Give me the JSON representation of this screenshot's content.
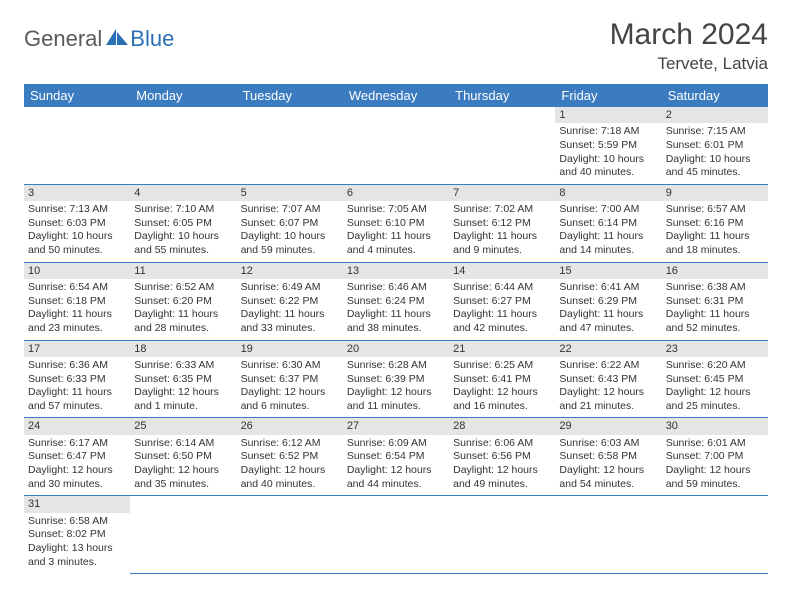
{
  "logo": {
    "part1": "General",
    "part2": "Blue"
  },
  "title": "March 2024",
  "location": "Tervete, Latvia",
  "colors": {
    "header_bg": "#3b7bbf",
    "header_text": "#ffffff",
    "daynum_bg": "#e5e5e5",
    "border": "#3b7bbf",
    "logo_gray": "#5a5a5a",
    "logo_blue": "#2b6fb5"
  },
  "weekdays": [
    "Sunday",
    "Monday",
    "Tuesday",
    "Wednesday",
    "Thursday",
    "Friday",
    "Saturday"
  ],
  "weeks": [
    [
      null,
      null,
      null,
      null,
      null,
      {
        "n": "1",
        "sr": "Sunrise: 7:18 AM",
        "ss": "Sunset: 5:59 PM",
        "d1": "Daylight: 10 hours",
        "d2": "and 40 minutes."
      },
      {
        "n": "2",
        "sr": "Sunrise: 7:15 AM",
        "ss": "Sunset: 6:01 PM",
        "d1": "Daylight: 10 hours",
        "d2": "and 45 minutes."
      }
    ],
    [
      {
        "n": "3",
        "sr": "Sunrise: 7:13 AM",
        "ss": "Sunset: 6:03 PM",
        "d1": "Daylight: 10 hours",
        "d2": "and 50 minutes."
      },
      {
        "n": "4",
        "sr": "Sunrise: 7:10 AM",
        "ss": "Sunset: 6:05 PM",
        "d1": "Daylight: 10 hours",
        "d2": "and 55 minutes."
      },
      {
        "n": "5",
        "sr": "Sunrise: 7:07 AM",
        "ss": "Sunset: 6:07 PM",
        "d1": "Daylight: 10 hours",
        "d2": "and 59 minutes."
      },
      {
        "n": "6",
        "sr": "Sunrise: 7:05 AM",
        "ss": "Sunset: 6:10 PM",
        "d1": "Daylight: 11 hours",
        "d2": "and 4 minutes."
      },
      {
        "n": "7",
        "sr": "Sunrise: 7:02 AM",
        "ss": "Sunset: 6:12 PM",
        "d1": "Daylight: 11 hours",
        "d2": "and 9 minutes."
      },
      {
        "n": "8",
        "sr": "Sunrise: 7:00 AM",
        "ss": "Sunset: 6:14 PM",
        "d1": "Daylight: 11 hours",
        "d2": "and 14 minutes."
      },
      {
        "n": "9",
        "sr": "Sunrise: 6:57 AM",
        "ss": "Sunset: 6:16 PM",
        "d1": "Daylight: 11 hours",
        "d2": "and 18 minutes."
      }
    ],
    [
      {
        "n": "10",
        "sr": "Sunrise: 6:54 AM",
        "ss": "Sunset: 6:18 PM",
        "d1": "Daylight: 11 hours",
        "d2": "and 23 minutes."
      },
      {
        "n": "11",
        "sr": "Sunrise: 6:52 AM",
        "ss": "Sunset: 6:20 PM",
        "d1": "Daylight: 11 hours",
        "d2": "and 28 minutes."
      },
      {
        "n": "12",
        "sr": "Sunrise: 6:49 AM",
        "ss": "Sunset: 6:22 PM",
        "d1": "Daylight: 11 hours",
        "d2": "and 33 minutes."
      },
      {
        "n": "13",
        "sr": "Sunrise: 6:46 AM",
        "ss": "Sunset: 6:24 PM",
        "d1": "Daylight: 11 hours",
        "d2": "and 38 minutes."
      },
      {
        "n": "14",
        "sr": "Sunrise: 6:44 AM",
        "ss": "Sunset: 6:27 PM",
        "d1": "Daylight: 11 hours",
        "d2": "and 42 minutes."
      },
      {
        "n": "15",
        "sr": "Sunrise: 6:41 AM",
        "ss": "Sunset: 6:29 PM",
        "d1": "Daylight: 11 hours",
        "d2": "and 47 minutes."
      },
      {
        "n": "16",
        "sr": "Sunrise: 6:38 AM",
        "ss": "Sunset: 6:31 PM",
        "d1": "Daylight: 11 hours",
        "d2": "and 52 minutes."
      }
    ],
    [
      {
        "n": "17",
        "sr": "Sunrise: 6:36 AM",
        "ss": "Sunset: 6:33 PM",
        "d1": "Daylight: 11 hours",
        "d2": "and 57 minutes."
      },
      {
        "n": "18",
        "sr": "Sunrise: 6:33 AM",
        "ss": "Sunset: 6:35 PM",
        "d1": "Daylight: 12 hours",
        "d2": "and 1 minute."
      },
      {
        "n": "19",
        "sr": "Sunrise: 6:30 AM",
        "ss": "Sunset: 6:37 PM",
        "d1": "Daylight: 12 hours",
        "d2": "and 6 minutes."
      },
      {
        "n": "20",
        "sr": "Sunrise: 6:28 AM",
        "ss": "Sunset: 6:39 PM",
        "d1": "Daylight: 12 hours",
        "d2": "and 11 minutes."
      },
      {
        "n": "21",
        "sr": "Sunrise: 6:25 AM",
        "ss": "Sunset: 6:41 PM",
        "d1": "Daylight: 12 hours",
        "d2": "and 16 minutes."
      },
      {
        "n": "22",
        "sr": "Sunrise: 6:22 AM",
        "ss": "Sunset: 6:43 PM",
        "d1": "Daylight: 12 hours",
        "d2": "and 21 minutes."
      },
      {
        "n": "23",
        "sr": "Sunrise: 6:20 AM",
        "ss": "Sunset: 6:45 PM",
        "d1": "Daylight: 12 hours",
        "d2": "and 25 minutes."
      }
    ],
    [
      {
        "n": "24",
        "sr": "Sunrise: 6:17 AM",
        "ss": "Sunset: 6:47 PM",
        "d1": "Daylight: 12 hours",
        "d2": "and 30 minutes."
      },
      {
        "n": "25",
        "sr": "Sunrise: 6:14 AM",
        "ss": "Sunset: 6:50 PM",
        "d1": "Daylight: 12 hours",
        "d2": "and 35 minutes."
      },
      {
        "n": "26",
        "sr": "Sunrise: 6:12 AM",
        "ss": "Sunset: 6:52 PM",
        "d1": "Daylight: 12 hours",
        "d2": "and 40 minutes."
      },
      {
        "n": "27",
        "sr": "Sunrise: 6:09 AM",
        "ss": "Sunset: 6:54 PM",
        "d1": "Daylight: 12 hours",
        "d2": "and 44 minutes."
      },
      {
        "n": "28",
        "sr": "Sunrise: 6:06 AM",
        "ss": "Sunset: 6:56 PM",
        "d1": "Daylight: 12 hours",
        "d2": "and 49 minutes."
      },
      {
        "n": "29",
        "sr": "Sunrise: 6:03 AM",
        "ss": "Sunset: 6:58 PM",
        "d1": "Daylight: 12 hours",
        "d2": "and 54 minutes."
      },
      {
        "n": "30",
        "sr": "Sunrise: 6:01 AM",
        "ss": "Sunset: 7:00 PM",
        "d1": "Daylight: 12 hours",
        "d2": "and 59 minutes."
      }
    ],
    [
      {
        "n": "31",
        "sr": "Sunrise: 6:58 AM",
        "ss": "Sunset: 8:02 PM",
        "d1": "Daylight: 13 hours",
        "d2": "and 3 minutes."
      },
      null,
      null,
      null,
      null,
      null,
      null
    ]
  ]
}
